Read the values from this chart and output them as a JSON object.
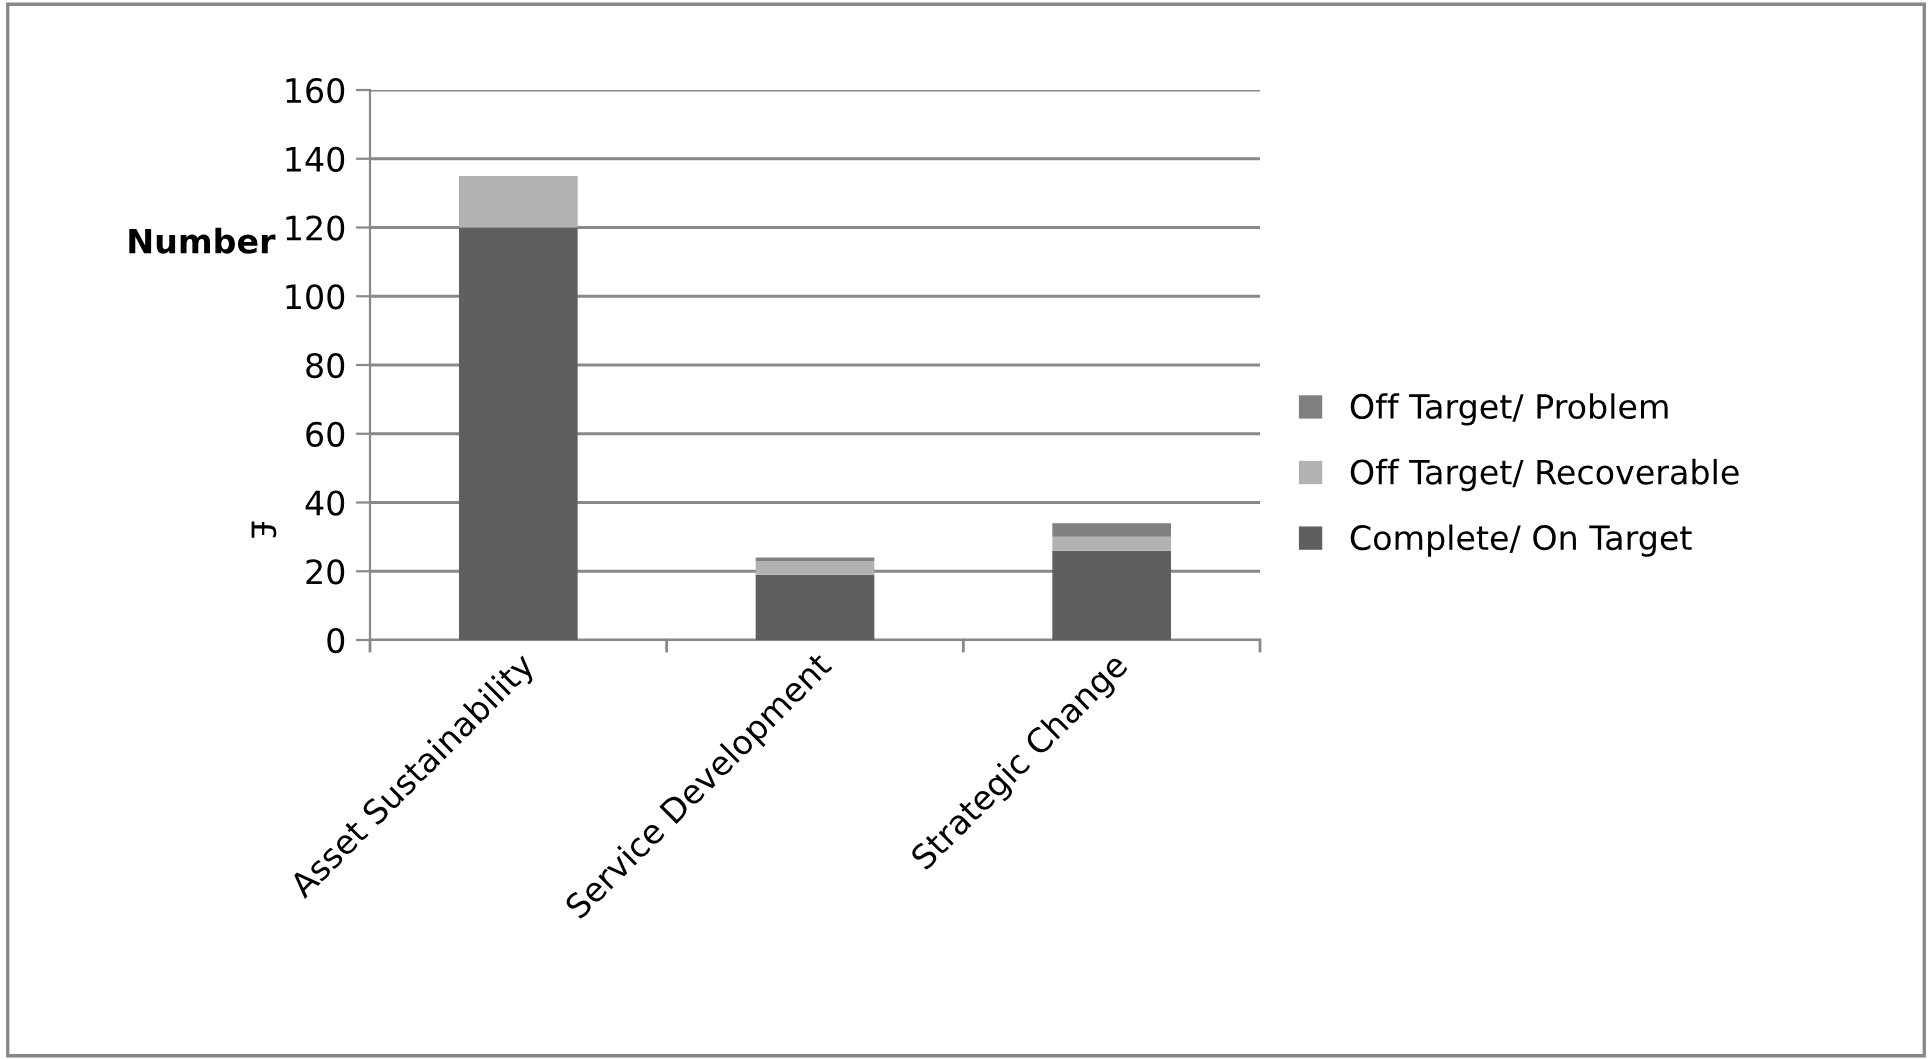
{
  "chart_data": {
    "type": "bar",
    "stacked": true,
    "ylabel": "Number",
    "annotations": [
      "£"
    ],
    "categories": [
      "Asset Sustainability",
      "Service Development",
      "Strategic Change"
    ],
    "series": [
      {
        "name": "Complete/ On Target",
        "color": "#5f5f5f",
        "values": [
          120,
          19,
          26
        ]
      },
      {
        "name": "Off Target/ Recoverable",
        "color": "#b2b2b2",
        "values": [
          15,
          4,
          4
        ]
      },
      {
        "name": "Off Target/ Problem",
        "color": "#808080",
        "values": [
          0,
          1,
          4
        ]
      }
    ],
    "ylim": [
      0,
      160
    ],
    "yticks": [
      0,
      20,
      40,
      60,
      80,
      100,
      120,
      140,
      160
    ],
    "grid": "y",
    "legend": "right"
  }
}
